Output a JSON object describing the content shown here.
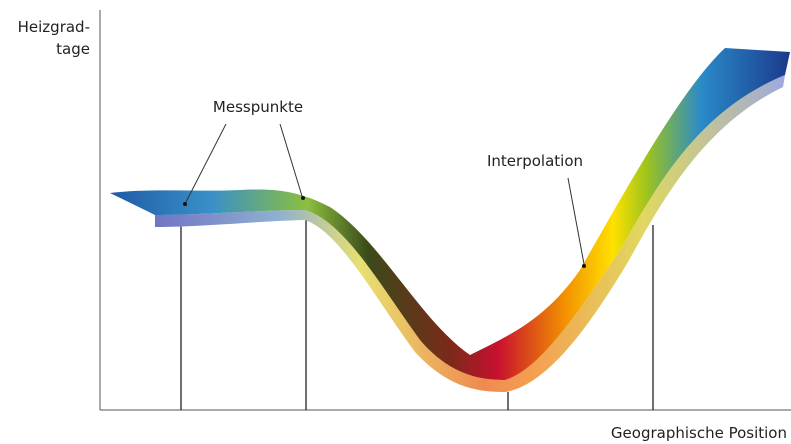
{
  "axis": {
    "y_label_lines": [
      "Heizgrad-",
      "tage"
    ],
    "x_label": "Geographische Position"
  },
  "annotations": {
    "measuring_points": "Messpunkte",
    "interpolation": "Interpolation"
  }
}
